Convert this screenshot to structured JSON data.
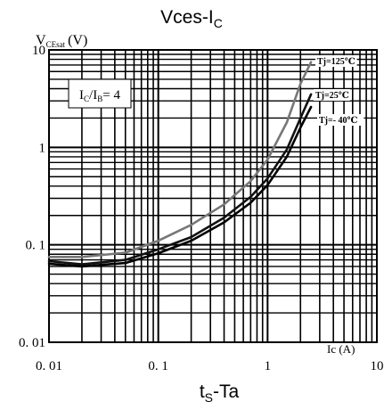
{
  "chart_data": {
    "type": "line",
    "title": "Vces-I",
    "title_sub": "C",
    "subtitle": "t",
    "subtitle_sub": "S",
    "subtitle_rest": "-Ta",
    "ylabel": "V",
    "ylabel_sub": "CEsat",
    "ylabel_unit": "(V)",
    "xlabel": "Ic (A)",
    "x_scale": "log",
    "y_scale": "log",
    "xlim": [
      0.01,
      10
    ],
    "ylim": [
      0.01,
      10
    ],
    "x_ticks": [
      {
        "value": 0.01,
        "label": "0. 01"
      },
      {
        "value": 0.1,
        "label": "0. 1"
      },
      {
        "value": 1,
        "label": "1"
      },
      {
        "value": 10,
        "label": "10"
      }
    ],
    "y_ticks": [
      {
        "value": 10,
        "label": "10"
      },
      {
        "value": 1,
        "label": "1"
      },
      {
        "value": 0.1,
        "label": "0. 1"
      },
      {
        "value": 0.01,
        "label": "0. 01"
      }
    ],
    "grid": true,
    "annotation": {
      "text": "I",
      "sub1": "C",
      "mid": "/I",
      "sub2": "B",
      "rest": "= 4"
    },
    "series": [
      {
        "name": "Tj=125℃",
        "color": "#777777",
        "x": [
          0.01,
          0.02,
          0.05,
          0.1,
          0.2,
          0.4,
          0.7,
          1.0,
          1.5,
          2.0,
          2.5
        ],
        "y": [
          0.075,
          0.075,
          0.083,
          0.11,
          0.16,
          0.26,
          0.45,
          0.75,
          1.8,
          4.5,
          7.5
        ]
      },
      {
        "name": "Tj=25℃",
        "color": "#111111",
        "x": [
          0.01,
          0.02,
          0.05,
          0.1,
          0.2,
          0.4,
          0.7,
          1.0,
          1.5,
          2.0,
          2.5
        ],
        "y": [
          0.068,
          0.063,
          0.07,
          0.09,
          0.12,
          0.19,
          0.31,
          0.48,
          0.95,
          2.0,
          3.5
        ]
      },
      {
        "name": "Tj=- 40℃",
        "color": "#000000",
        "x": [
          0.01,
          0.02,
          0.05,
          0.1,
          0.2,
          0.4,
          0.7,
          1.0,
          1.5,
          2.0,
          2.5
        ],
        "y": [
          0.064,
          0.06,
          0.065,
          0.082,
          0.11,
          0.17,
          0.27,
          0.41,
          0.8,
          1.6,
          2.6
        ]
      }
    ]
  }
}
